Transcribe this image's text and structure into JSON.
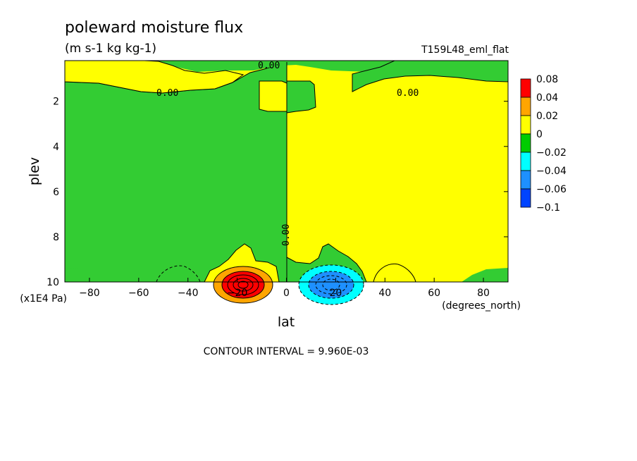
{
  "chart_data": {
    "type": "heatmap",
    "title": "poleward moisture flux",
    "subtitle": "(m s-1 kg kg-1)",
    "run_label": "T159L48_eml_flat",
    "xlabel": "lat",
    "x_units": "(degrees_north)",
    "ylabel": "plev",
    "y_units": "(x1E4 Pa)",
    "xlim": [
      -90,
      90
    ],
    "ylim": [
      10,
      0.2
    ],
    "x_ticks": [
      -80,
      -60,
      -40,
      -20,
      0,
      20,
      40,
      60,
      80
    ],
    "y_ticks": [
      2,
      4,
      6,
      8,
      10
    ],
    "contour_label": "0.00",
    "footer": "CONTOUR INTERVAL = 9.960E-03",
    "colorbar": {
      "labels": [
        "0.08",
        "0.04",
        "0.02",
        "0",
        "-0.02",
        "-0.04",
        "-0.06",
        "-0.1"
      ],
      "colors": [
        "#ff0000",
        "#ffa500",
        "#ffff00",
        "#00cc00",
        "#00ffff",
        "#1e90ff",
        "#0044ff"
      ]
    },
    "colors": {
      "positive": "#ffff00",
      "negative": "#33cc33",
      "line": "#000000"
    },
    "features": [
      {
        "name": "positive maximum",
        "lat": -20,
        "plev": 9.9,
        "value": 0.08
      },
      {
        "name": "negative minimum",
        "lat": 20,
        "plev": 9.8,
        "value": -0.06
      }
    ]
  }
}
